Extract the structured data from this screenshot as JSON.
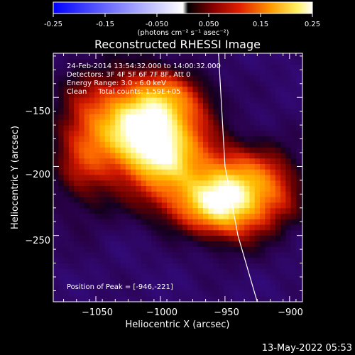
{
  "colorbar": {
    "tick_labels": [
      "-0.25",
      "-0.15",
      "-0.050",
      "0.050",
      "0.15",
      "0.25"
    ],
    "unit_label": "(photons cm⁻² s⁻¹ asec⁻²)",
    "range": [
      -0.25,
      0.25
    ]
  },
  "chart_data": {
    "type": "heatmap",
    "title": "Reconstructed RHESSI Image",
    "xlabel": "Heliocentric X (arcsec)",
    "ylabel": "Heliocentric Y (arcsec)",
    "xlim": [
      -1083,
      -890
    ],
    "ylim": [
      -298,
      -118
    ],
    "xticks": [
      -1050,
      -1000,
      -950,
      -900
    ],
    "xtick_labels": [
      "−1050",
      "−1000",
      "−950",
      "−900"
    ],
    "yticks": [
      -150,
      -200,
      -250
    ],
    "ytick_labels": [
      "−150",
      "−200",
      "−250"
    ],
    "annotations": [
      "24-Feb-2014 13:54:32.000 to 14:00:32.000",
      "Detectors: 3F 4F 5F 6F 7F 8F, Att 0",
      "Energy Range: 3.0 - 6.0 keV",
      "Clean     Total counts: 1.59E+05"
    ],
    "peak_label": "Position of Peak = [-946,-221]",
    "peak": [
      -946,
      -221
    ],
    "sources": [
      {
        "x": -1018,
        "y": -167,
        "peak": 0.22
      },
      {
        "x": -997,
        "y": -190,
        "peak": 0.2
      },
      {
        "x": -946,
        "y": -221,
        "peak": 0.25
      }
    ],
    "limb_line": [
      [
        -955,
        -118
      ],
      [
        -950,
        -200
      ],
      [
        -940,
        -250
      ],
      [
        -925,
        -298
      ]
    ],
    "grid": false
  },
  "footer": {
    "timestamp": "13-May-2022 05:53"
  }
}
